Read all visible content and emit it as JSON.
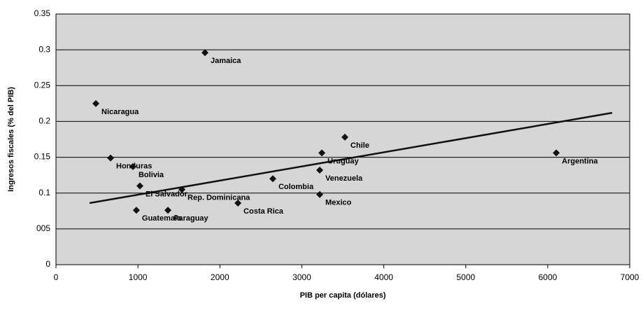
{
  "chart_data": {
    "type": "scatter",
    "x_label": "PIB per capita (dólares)",
    "y_label": "Ingresos fiscales (% del PIB)",
    "xlim": [
      0,
      7000
    ],
    "xticks": [
      0,
      1000,
      2000,
      3000,
      4000,
      5000,
      6000,
      7000
    ],
    "ylim": [
      0,
      0.35
    ],
    "yticks": [
      0,
      {
        "value": 0.05,
        "label": "005"
      },
      0.1,
      0.15,
      0.2,
      0.25,
      0.3,
      0.35
    ],
    "grid": true,
    "series": [
      {
        "color": "#111111",
        "x": [
          1818,
          487,
          666,
          939,
          1024,
          981,
          1366,
          3525,
          6104,
          3218,
          3218,
          3244,
          2646,
          2220,
          1537
        ],
        "values": [
          0.296,
          0.225,
          0.149,
          0.137,
          0.11,
          0.076,
          0.076,
          0.178,
          0.156,
          0.132,
          0.098,
          0.156,
          0.12,
          0.086,
          0.105
        ],
        "labels": [
          "Jamaica",
          "Nicaragua",
          "Honduras",
          "Bolivia",
          "El Salvador",
          "Guatemala",
          "Paraguay",
          "Chile",
          "Argentina",
          "Venezuela",
          "Mexico",
          "Uruguay",
          "Colombia",
          "Costa Rica",
          "Rep. Dominicana"
        ]
      }
    ],
    "trendline": {
      "color": "#111111",
      "x": [
        410,
        6786
      ],
      "values": [
        0.086,
        0.212
      ]
    }
  }
}
